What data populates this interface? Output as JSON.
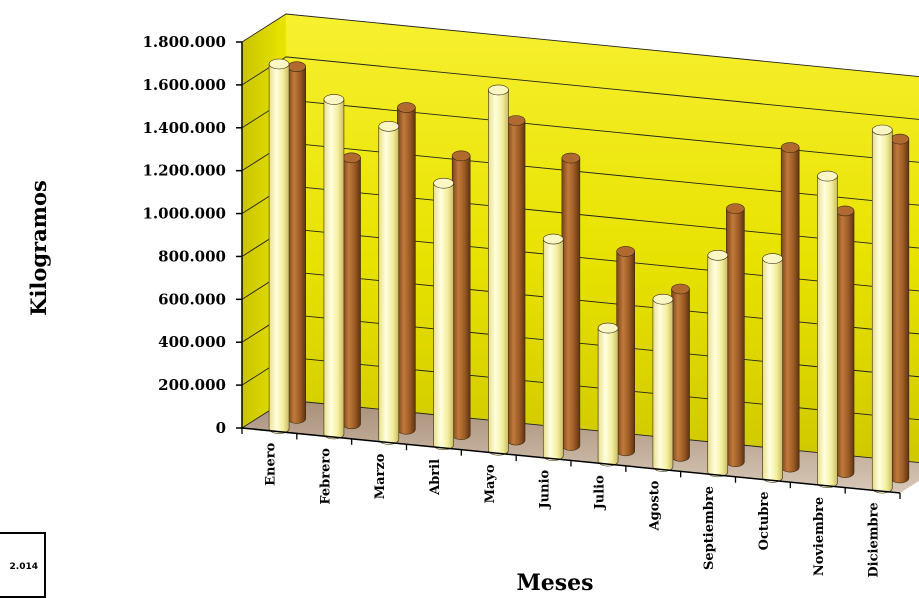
{
  "chart_data": {
    "type": "bar",
    "ylabel": "Kilogramos",
    "xlabel": "Meses",
    "ylim": [
      0,
      1800000
    ],
    "yticks": [
      "0",
      "200.000",
      "400.000",
      "600.000",
      "800.000",
      "1.000.000",
      "1.200.000",
      "1.400.000",
      "1.600.000",
      "1.800.000"
    ],
    "categories": [
      "Enero",
      "Febrero",
      "Marzo",
      "Abril",
      "Mayo",
      "Junio",
      "Julio",
      "Agosto",
      "Septiembre",
      "Octubre",
      "Noviembre",
      "Diciembre"
    ],
    "series": [
      {
        "values": [
          1700000,
          1560000,
          1460000,
          1220000,
          1680000,
          1010000,
          620000,
          780000,
          1010000,
          1020000,
          1430000,
          1670000
        ]
      },
      {
        "values": [
          1640000,
          1240000,
          1500000,
          1300000,
          1490000,
          1340000,
          930000,
          780000,
          1180000,
          1490000,
          1220000,
          1580000
        ]
      }
    ],
    "colors": [
      "#f4f0a0",
      "#9a5a24"
    ],
    "grid": true,
    "background": "yellow-gradient-3d-wall"
  },
  "legend": {
    "partial_text": "2.014"
  }
}
